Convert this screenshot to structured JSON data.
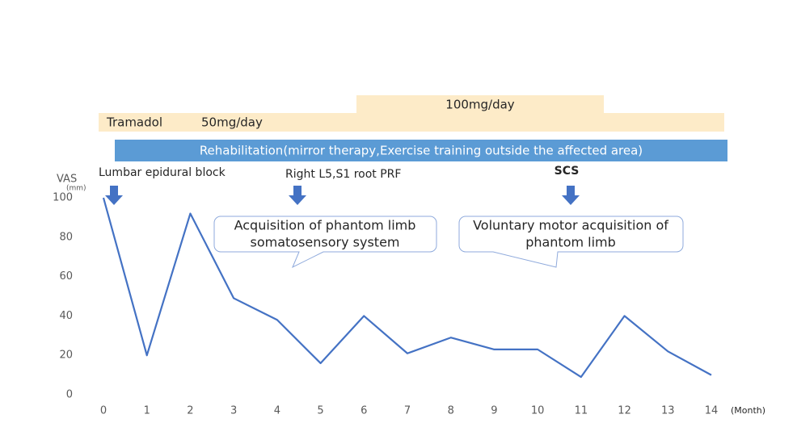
{
  "chart_data": {
    "type": "line",
    "y_label": "VAS",
    "y_unit": "(mm)",
    "x_label": "(Month)",
    "x": [
      0,
      1,
      2,
      3,
      4,
      5,
      6,
      7,
      8,
      9,
      10,
      11,
      12,
      13,
      14
    ],
    "values": [
      100,
      20,
      92,
      49,
      38,
      16,
      40,
      21,
      29,
      23,
      23,
      9,
      40,
      22,
      10
    ],
    "color": "#4472c4",
    "xlim": [
      0,
      14
    ],
    "ylim": [
      0,
      100
    ],
    "xticks": [
      0,
      1,
      2,
      3,
      4,
      5,
      6,
      7,
      8,
      9,
      10,
      11,
      12,
      13,
      14
    ],
    "yticks": [
      0,
      20,
      40,
      60,
      80,
      100
    ],
    "annotations": {
      "drug": "Tramadol",
      "dose_low": "50mg/day",
      "dose_high": "100mg/day",
      "rehabilitation": "Rehabilitation(mirror therapy,Exercise training outside the affected area)",
      "events": [
        "Lumbar epidural block",
        "Right L5,S1 root PRF",
        "SCS"
      ],
      "callouts": [
        [
          "Acquisition of phantom limb",
          "somatosensory system"
        ],
        [
          "Voluntary motor acquisition of",
          "phantom limb"
        ]
      ]
    }
  }
}
